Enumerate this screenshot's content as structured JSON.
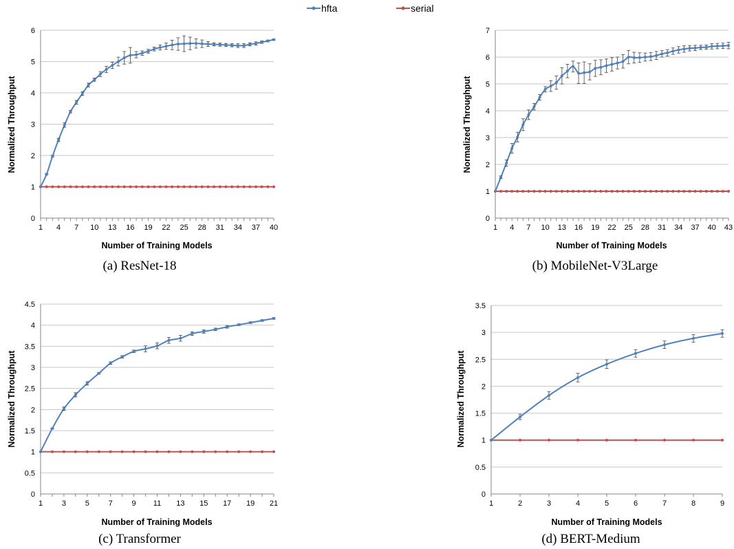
{
  "legend": {
    "items": [
      {
        "label": "hfta",
        "color": "#4f81bd"
      },
      {
        "label": "serial",
        "color": "#c0504d"
      }
    ]
  },
  "chart_data": [
    {
      "type": "line",
      "caption": "(a) ResNet-18",
      "xlabel": "Number of Training Models",
      "ylabel": "Normalized Throughput",
      "xlim": [
        1,
        40
      ],
      "ylim": [
        0,
        6
      ],
      "xticks": [
        1,
        4,
        7,
        10,
        13,
        16,
        19,
        22,
        25,
        28,
        31,
        34,
        37,
        40
      ],
      "yticks": [
        0,
        1,
        2,
        3,
        4,
        5,
        6
      ],
      "grid": true,
      "legend_position": "top-center",
      "series": [
        {
          "name": "hfta",
          "color": "#4f81bd",
          "x": [
            1,
            2,
            3,
            4,
            5,
            6,
            7,
            8,
            9,
            10,
            11,
            12,
            13,
            14,
            15,
            16,
            17,
            18,
            19,
            20,
            21,
            22,
            23,
            24,
            25,
            26,
            27,
            28,
            29,
            30,
            31,
            32,
            33,
            34,
            35,
            36,
            37,
            38,
            39,
            40
          ],
          "y": [
            1,
            1.4,
            1.98,
            2.5,
            2.97,
            3.4,
            3.7,
            3.98,
            4.25,
            4.42,
            4.6,
            4.75,
            4.88,
            5.0,
            5.12,
            5.2,
            5.22,
            5.27,
            5.33,
            5.4,
            5.45,
            5.49,
            5.53,
            5.56,
            5.57,
            5.58,
            5.58,
            5.57,
            5.56,
            5.55,
            5.54,
            5.53,
            5.52,
            5.51,
            5.51,
            5.55,
            5.58,
            5.62,
            5.66,
            5.7
          ],
          "err": [
            0,
            0.02,
            0.03,
            0.05,
            0.07,
            0.04,
            0.06,
            0.06,
            0.06,
            0.05,
            0.08,
            0.1,
            0.1,
            0.14,
            0.2,
            0.25,
            0.1,
            0.07,
            0.06,
            0.06,
            0.08,
            0.1,
            0.15,
            0.2,
            0.25,
            0.2,
            0.15,
            0.12,
            0.08,
            0.05,
            0.05,
            0.05,
            0.05,
            0.06,
            0.06,
            0.05,
            0.05,
            0.04,
            0.03,
            0.02
          ]
        },
        {
          "name": "serial",
          "color": "#c0504d",
          "x": [
            1,
            2,
            3,
            4,
            5,
            6,
            7,
            8,
            9,
            10,
            11,
            12,
            13,
            14,
            15,
            16,
            17,
            18,
            19,
            20,
            21,
            22,
            23,
            24,
            25,
            26,
            27,
            28,
            29,
            30,
            31,
            32,
            33,
            34,
            35,
            36,
            37,
            38,
            39,
            40
          ],
          "y": [
            1,
            1,
            1,
            1,
            1,
            1,
            1,
            1,
            1,
            1,
            1,
            1,
            1,
            1,
            1,
            1,
            1,
            1,
            1,
            1,
            1,
            1,
            1,
            1,
            1,
            1,
            1,
            1,
            1,
            1,
            1,
            1,
            1,
            1,
            1,
            1,
            1,
            1,
            1,
            1
          ]
        }
      ]
    },
    {
      "type": "line",
      "caption": "(b) MobileNet-V3Large",
      "xlabel": "Number of Training Models",
      "ylabel": "Normalized Throughput",
      "xlim": [
        1,
        43
      ],
      "ylim": [
        0,
        7
      ],
      "xticks": [
        1,
        4,
        7,
        10,
        13,
        16,
        19,
        22,
        25,
        28,
        31,
        34,
        37,
        40,
        43
      ],
      "yticks": [
        0,
        1,
        2,
        3,
        4,
        5,
        6,
        7
      ],
      "grid": true,
      "series": [
        {
          "name": "hfta",
          "color": "#4f81bd",
          "x": [
            1,
            2,
            3,
            4,
            5,
            6,
            7,
            8,
            9,
            10,
            11,
            12,
            13,
            14,
            15,
            16,
            17,
            18,
            19,
            20,
            21,
            22,
            23,
            24,
            25,
            26,
            27,
            28,
            29,
            30,
            31,
            32,
            33,
            34,
            35,
            36,
            37,
            38,
            39,
            40,
            41,
            42,
            43
          ],
          "y": [
            1,
            1.52,
            2.05,
            2.6,
            3.02,
            3.48,
            3.85,
            4.15,
            4.5,
            4.8,
            4.92,
            5.05,
            5.3,
            5.48,
            5.65,
            5.4,
            5.42,
            5.45,
            5.58,
            5.62,
            5.68,
            5.73,
            5.78,
            5.84,
            6.0,
            5.98,
            5.98,
            6.0,
            6.02,
            6.06,
            6.12,
            6.16,
            6.22,
            6.27,
            6.3,
            6.33,
            6.34,
            6.36,
            6.37,
            6.4,
            6.41,
            6.42,
            6.43
          ],
          "err": [
            0,
            0.05,
            0.12,
            0.18,
            0.18,
            0.22,
            0.18,
            0.12,
            0.1,
            0.1,
            0.2,
            0.25,
            0.3,
            0.25,
            0.2,
            0.38,
            0.4,
            0.3,
            0.3,
            0.28,
            0.25,
            0.25,
            0.22,
            0.25,
            0.25,
            0.2,
            0.18,
            0.15,
            0.15,
            0.15,
            0.12,
            0.12,
            0.12,
            0.12,
            0.12,
            0.1,
            0.1,
            0.08,
            0.08,
            0.1,
            0.1,
            0.1,
            0.12
          ]
        },
        {
          "name": "serial",
          "color": "#c0504d",
          "x": [
            1,
            2,
            3,
            4,
            5,
            6,
            7,
            8,
            9,
            10,
            11,
            12,
            13,
            14,
            15,
            16,
            17,
            18,
            19,
            20,
            21,
            22,
            23,
            24,
            25,
            26,
            27,
            28,
            29,
            30,
            31,
            32,
            33,
            34,
            35,
            36,
            37,
            38,
            39,
            40,
            41,
            42,
            43
          ],
          "y": [
            1,
            1,
            1,
            1,
            1,
            1,
            1,
            1,
            1,
            1,
            1,
            1,
            1,
            1,
            1,
            1,
            1,
            1,
            1,
            1,
            1,
            1,
            1,
            1,
            1,
            1,
            1,
            1,
            1,
            1,
            1,
            1,
            1,
            1,
            1,
            1,
            1,
            1,
            1,
            1,
            1,
            1,
            1
          ]
        }
      ]
    },
    {
      "type": "line",
      "caption": "(c) Transformer",
      "xlabel": "Number of Training Models",
      "ylabel": "Normalized Throughput",
      "xlim": [
        1,
        21
      ],
      "ylim": [
        0,
        4.5
      ],
      "xticks": [
        1,
        3,
        5,
        7,
        9,
        11,
        13,
        15,
        17,
        19,
        21
      ],
      "yticks": [
        0,
        0.5,
        1,
        1.5,
        2,
        2.5,
        3,
        3.5,
        4,
        4.5
      ],
      "grid": true,
      "series": [
        {
          "name": "hfta",
          "color": "#4f81bd",
          "x": [
            1,
            2,
            3,
            4,
            5,
            6,
            7,
            8,
            9,
            10,
            11,
            12,
            13,
            14,
            15,
            16,
            17,
            18,
            19,
            20,
            21
          ],
          "y": [
            1,
            1.55,
            2.02,
            2.35,
            2.62,
            2.86,
            3.1,
            3.25,
            3.38,
            3.44,
            3.51,
            3.64,
            3.69,
            3.8,
            3.85,
            3.9,
            3.96,
            4.01,
            4.06,
            4.11,
            4.16
          ],
          "err": [
            0,
            0.01,
            0.04,
            0.05,
            0.04,
            0.02,
            0.03,
            0.03,
            0.03,
            0.07,
            0.07,
            0.07,
            0.07,
            0.04,
            0.04,
            0.03,
            0.03,
            0.02,
            0.02,
            0.02,
            0.02
          ]
        },
        {
          "name": "serial",
          "color": "#c0504d",
          "x": [
            1,
            2,
            3,
            4,
            5,
            6,
            7,
            8,
            9,
            10,
            11,
            12,
            13,
            14,
            15,
            16,
            17,
            18,
            19,
            20,
            21
          ],
          "y": [
            1,
            1,
            1,
            1,
            1,
            1,
            1,
            1,
            1,
            1,
            1,
            1,
            1,
            1,
            1,
            1,
            1,
            1,
            1,
            1,
            1
          ]
        }
      ]
    },
    {
      "type": "line",
      "caption": "(d) BERT-Medium",
      "xlabel": "Number of Training Models",
      "ylabel": "Normalized Throughput",
      "xlim": [
        1,
        9
      ],
      "ylim": [
        0,
        3.5
      ],
      "xticks": [
        1,
        2,
        3,
        4,
        5,
        6,
        7,
        8,
        9
      ],
      "yticks": [
        0,
        0.5,
        1,
        1.5,
        2,
        2.5,
        3,
        3.5
      ],
      "grid": true,
      "series": [
        {
          "name": "hfta",
          "color": "#4f81bd",
          "x": [
            1,
            2,
            3,
            4,
            5,
            6,
            7,
            8,
            9
          ],
          "y": [
            1,
            1.43,
            1.83,
            2.16,
            2.41,
            2.61,
            2.77,
            2.89,
            2.98
          ],
          "err": [
            0,
            0.05,
            0.07,
            0.08,
            0.08,
            0.07,
            0.07,
            0.07,
            0.07
          ]
        },
        {
          "name": "serial",
          "color": "#c0504d",
          "x": [
            1,
            2,
            3,
            4,
            5,
            6,
            7,
            8,
            9
          ],
          "y": [
            1,
            1,
            1,
            1,
            1,
            1,
            1,
            1,
            1
          ]
        }
      ]
    }
  ]
}
